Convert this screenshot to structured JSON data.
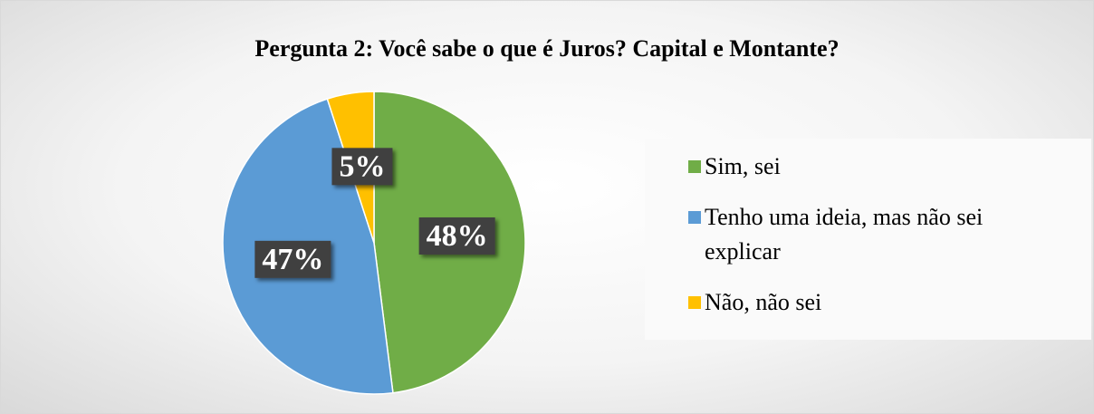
{
  "chart_data": {
    "type": "pie",
    "title": "Pergunta 2: Você sabe o que é Juros? Capital e Montante?",
    "categories": [
      "Sim, sei",
      "Tenho uma ideia, mas não sei explicar",
      "Não, não sei"
    ],
    "values": [
      48,
      47,
      5
    ],
    "value_labels": [
      "48%",
      "47%",
      "5%"
    ],
    "colors": [
      "#70ad47",
      "#5b9bd5",
      "#ffc000"
    ],
    "legend": "right"
  }
}
